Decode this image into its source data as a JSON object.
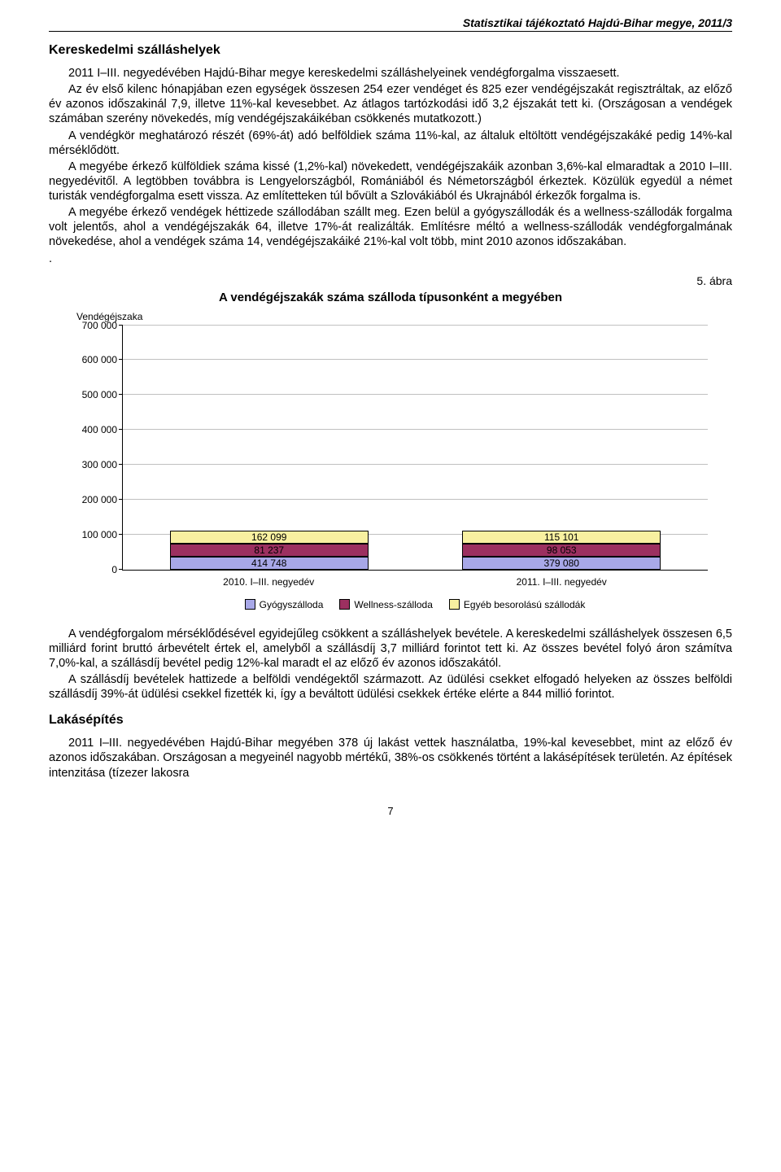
{
  "header": "Statisztikai tájékoztató Hajdú-Bihar megye, 2011/3",
  "section1_title": "Kereskedelmi szálláshelyek",
  "p1": "2011 I–III. negyedévében Hajdú-Bihar megye kereskedelmi szálláshelyeinek vendégforgalma visszaesett.",
  "p2": "Az év első kilenc hónapjában ezen egységek összesen 254 ezer vendéget és 825 ezer vendégéjszakát regisztráltak, az előző év azonos időszakinál 7,9, illetve 11%-kal kevesebbet. Az átlagos tartózkodási idő 3,2 éjszakát tett ki. (Országosan a vendégek számában szerény növekedés, míg vendégéjszakáikéban csökkenés mutatkozott.)",
  "p3": "A vendégkör meghatározó részét (69%-át) adó belföldiek száma 11%-kal, az általuk eltöltött vendégéjszakáké pedig 14%-kal mérséklődött.",
  "p4": "A megyébe érkező külföldiek száma kissé (1,2%-kal) növekedett, vendégéjszakáik azonban 3,6%-kal elmaradtak a 2010 I–III. negyedévitől. A legtöbben továbbra is Lengyelországból, Romániából és Németországból érkeztek. Közülük egyedül a német turisták vendégforgalma esett vissza. Az említetteken túl bővült a Szlovákiából és Ukrajnából érkezők forgalma is.",
  "p5": "A megyébe érkező vendégek héttizede szállodában szállt meg. Ezen belül a gyógyszállodák és a wellness-szállodák forgalma volt jelentős, ahol a vendégéjszakák 64, illetve 17%-át realizálták. Említésre méltó a wellness-szállodák vendégforgalmának növekedése, ahol a vendégek száma 14, vendégéjszakáiké 21%-kal volt több, mint 2010 azonos időszakában.",
  "p5_dot": ".",
  "fig_num": "5. ábra",
  "fig_title": "A vendégéjszakák száma szálloda típusonként a megyében",
  "chart": {
    "y_axis_title": "Vendégéjszaka",
    "y_max": 700000,
    "y_ticks": [
      "0",
      "100 000",
      "200 000",
      "300 000",
      "400 000",
      "500 000",
      "600 000",
      "700 000"
    ],
    "grid_color": "#c0c0c0",
    "categories": [
      "2010. I–III. negyedév",
      "2011. I–III. negyedév"
    ],
    "colors": {
      "gyogy": "#a8a8e8",
      "wellness": "#9c3060",
      "egyeb": "#f8f0a0"
    },
    "series_labels": {
      "gyogy": "Gyógyszálloda",
      "wellness": "Wellness-szálloda",
      "egyeb": "Egyéb besorolású szállodák"
    },
    "stacks": [
      {
        "gyogy": 414748,
        "wellness": 81237,
        "egyeb": 162099,
        "gyogy_label": "414 748",
        "wellness_label": "81 237",
        "egyeb_label": "162 099"
      },
      {
        "gyogy": 379080,
        "wellness": 98053,
        "egyeb": 115101,
        "gyogy_label": "379 080",
        "wellness_label": "98 053",
        "egyeb_label": "115 101"
      }
    ]
  },
  "p6": "A vendégforgalom mérséklődésével egyidejűleg csökkent a szálláshelyek bevétele. A kereskedelmi szálláshelyek összesen 6,5 milliárd forint bruttó árbevételt értek el, amelyből a szállásdíj 3,7 milliárd forintot tett ki. Az összes bevétel folyó áron számítva 7,0%-kal, a szállásdíj bevétel pedig 12%-kal maradt el az előző év azonos időszakától.",
  "p7": "A szállásdíj bevételek hattizede a belföldi vendégektől származott. Az üdülési csekket elfogadó helyeken az összes belföldi szállásdíj 39%-át üdülési csekkel fizették ki, így a beváltott üdülési csekkek értéke elérte a 844 millió forintot.",
  "section2_title": "Lakásépítés",
  "p8": "2011 I–III. negyedévében Hajdú-Bihar megyében 378 új lakást vettek használatba, 19%-kal kevesebbet, mint az előző év azonos időszakában. Országosan a megyeinél nagyobb mértékű, 38%-os csökkenés történt a lakásépítések területén. Az építések intenzitása (tízezer lakosra",
  "page_num": "7"
}
